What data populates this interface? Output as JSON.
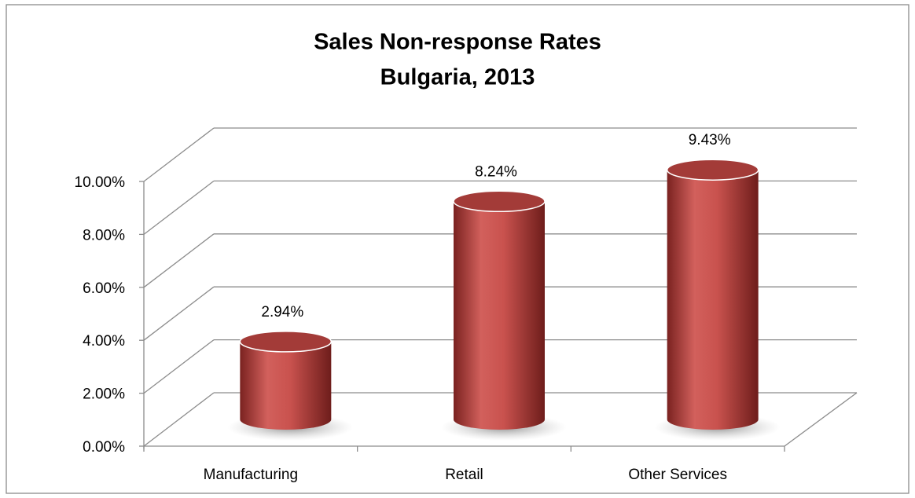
{
  "chart_data": {
    "type": "bar3d",
    "title": "Sales Non-response Rates",
    "subtitle": "Bulgaria, 2013",
    "categories": [
      "Manufacturing",
      "Retail",
      "Other Services"
    ],
    "values": [
      2.94,
      8.24,
      9.43
    ],
    "value_labels": [
      "2.94%",
      "8.24%",
      "9.43%"
    ],
    "color": "#c0504d",
    "ylim": [
      0,
      10
    ],
    "yticks": [
      {
        "value": 0,
        "label": "0.00%"
      },
      {
        "value": 2,
        "label": "2.00%"
      },
      {
        "value": 4,
        "label": "4.00%"
      },
      {
        "value": 6,
        "label": "6.00%"
      },
      {
        "value": 8,
        "label": "8.00%"
      },
      {
        "value": 10,
        "label": "10.00%"
      }
    ],
    "grid": true
  }
}
